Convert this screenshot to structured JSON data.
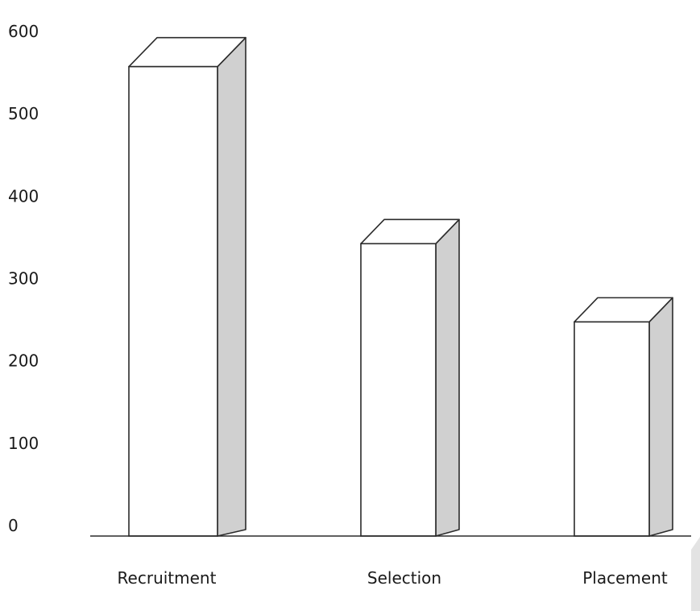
{
  "chart_data": {
    "type": "bar",
    "style": "3d-column",
    "categories": [
      "Recruitment",
      "Selection",
      "Placement"
    ],
    "values": [
      570,
      355,
      260
    ],
    "y_ticks": [
      "0",
      "100",
      "200",
      "300",
      "400",
      "500",
      "600"
    ],
    "ylim": [
      0,
      600
    ],
    "title": "",
    "xlabel": "",
    "ylabel": "",
    "grid": false,
    "legend": "none",
    "colors": {
      "front": "#ffffff",
      "side": "#d0d0d0",
      "outline": "#2b2b2b",
      "text": "#1a1a1a"
    }
  }
}
